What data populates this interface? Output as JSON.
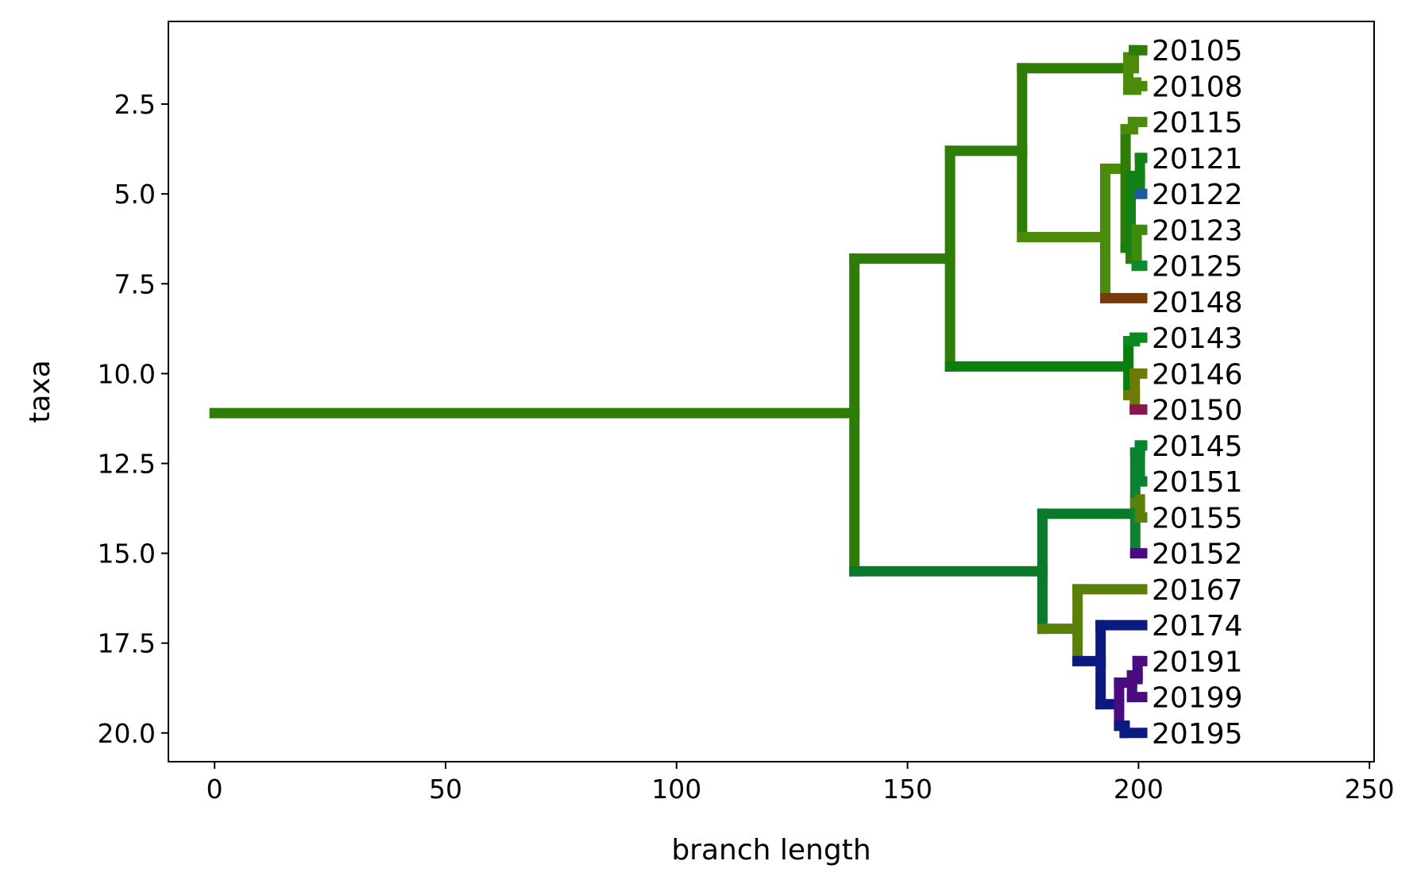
{
  "chart_data": {
    "type": "dendrogram",
    "title": "",
    "xlabel": "branch length",
    "ylabel": "taxa",
    "xlim": [
      -10,
      251
    ],
    "ylim": [
      20.8,
      0.2
    ],
    "y_inverted": true,
    "grid": false,
    "xticks": [
      0,
      50,
      100,
      150,
      200,
      250
    ],
    "yticks": [
      2.5,
      5.0,
      7.5,
      10.0,
      12.5,
      15.0,
      17.5,
      20.0
    ],
    "xtick_labels": [
      "0",
      "50",
      "100",
      "150",
      "200",
      "250"
    ],
    "ytick_labels": [
      "2.5",
      "5.0",
      "7.5",
      "10.0",
      "12.5",
      "15.0",
      "17.5",
      "20.0"
    ],
    "leaves": [
      {
        "label": "20105",
        "y": 1,
        "x": 200.8
      },
      {
        "label": "20108",
        "y": 2,
        "x": 200.8
      },
      {
        "label": "20115",
        "y": 3,
        "x": 200.8
      },
      {
        "label": "20121",
        "y": 4,
        "x": 200.8
      },
      {
        "label": "20122",
        "y": 5,
        "x": 200.8
      },
      {
        "label": "20123",
        "y": 6,
        "x": 200.8
      },
      {
        "label": "20125",
        "y": 7,
        "x": 200.8
      },
      {
        "label": "20148",
        "y": 8,
        "x": 200.8
      },
      {
        "label": "20143",
        "y": 9,
        "x": 200.8
      },
      {
        "label": "20146",
        "y": 10,
        "x": 200.8
      },
      {
        "label": "20150",
        "y": 11,
        "x": 200.8
      },
      {
        "label": "20145",
        "y": 12,
        "x": 200.8
      },
      {
        "label": "20151",
        "y": 13,
        "x": 200.8
      },
      {
        "label": "20155",
        "y": 14,
        "x": 200.8
      },
      {
        "label": "20152",
        "y": 15,
        "x": 200.8
      },
      {
        "label": "20167",
        "y": 16,
        "x": 200.8
      },
      {
        "label": "20174",
        "y": 17,
        "x": 200.8
      },
      {
        "label": "20191",
        "y": 18,
        "x": 200.8
      },
      {
        "label": "20199",
        "y": 19,
        "x": 200.8
      },
      {
        "label": "20195",
        "y": 20,
        "x": 200.8
      }
    ],
    "segments": [
      {
        "x1": 0,
        "y1": 11.1,
        "x2": 138.5,
        "y2": 11.1,
        "color": "#2e7d06"
      },
      {
        "x1": 138.5,
        "y1": 6.8,
        "x2": 138.5,
        "y2": 15.5,
        "color": "#2e7d06"
      },
      {
        "x1": 138.5,
        "y1": 6.8,
        "x2": 159.2,
        "y2": 6.8,
        "color": "#2e7d06"
      },
      {
        "x1": 159.2,
        "y1": 3.8,
        "x2": 159.2,
        "y2": 9.8,
        "color": "#2e7d06"
      },
      {
        "x1": 159.2,
        "y1": 3.8,
        "x2": 174.8,
        "y2": 3.8,
        "color": "#2e7d06"
      },
      {
        "x1": 174.8,
        "y1": 1.5,
        "x2": 174.8,
        "y2": 6.2,
        "color": "#2e7d06"
      },
      {
        "x1": 174.8,
        "y1": 1.5,
        "x2": 197.8,
        "y2": 1.5,
        "color": "#2e7d06"
      },
      {
        "x1": 197.8,
        "y1": 1.2,
        "x2": 197.8,
        "y2": 2.1,
        "color": "#4c8a0a"
      },
      {
        "x1": 197.8,
        "y1": 1.2,
        "x2": 199.0,
        "y2": 1.2,
        "color": "#4c8a0a"
      },
      {
        "x1": 199.0,
        "y1": 1.0,
        "x2": 199.0,
        "y2": 1.5,
        "color": "#4c8a0a"
      },
      {
        "x1": 199.0,
        "y1": 1.0,
        "x2": 200.8,
        "y2": 1.0,
        "color": "#2e7d06"
      },
      {
        "x1": 197.8,
        "y1": 2.1,
        "x2": 199.5,
        "y2": 2.1,
        "color": "#4c8a0a"
      },
      {
        "x1": 199.5,
        "y1": 1.9,
        "x2": 199.5,
        "y2": 2.1,
        "color": "#4c8a0a"
      },
      {
        "x1": 199.5,
        "y1": 2.0,
        "x2": 200.8,
        "y2": 2.0,
        "color": "#4c8a0a"
      },
      {
        "x1": 174.8,
        "y1": 6.2,
        "x2": 192.8,
        "y2": 6.2,
        "color": "#4c8a0a"
      },
      {
        "x1": 192.8,
        "y1": 4.3,
        "x2": 192.8,
        "y2": 7.9,
        "color": "#4c8a0a"
      },
      {
        "x1": 192.8,
        "y1": 4.3,
        "x2": 197.2,
        "y2": 4.3,
        "color": "#4c8a0a"
      },
      {
        "x1": 197.2,
        "y1": 3.2,
        "x2": 197.2,
        "y2": 6.5,
        "color": "#2e7d06"
      },
      {
        "x1": 197.2,
        "y1": 3.2,
        "x2": 198.8,
        "y2": 3.2,
        "color": "#4c8a0a"
      },
      {
        "x1": 198.8,
        "y1": 3.0,
        "x2": 198.8,
        "y2": 3.2,
        "color": "#4c8a0a"
      },
      {
        "x1": 198.8,
        "y1": 3.0,
        "x2": 200.8,
        "y2": 3.0,
        "color": "#4c8a0a"
      },
      {
        "x1": 197.2,
        "y1": 6.5,
        "x2": 198.3,
        "y2": 6.5,
        "color": "#1f7d0e"
      },
      {
        "x1": 198.3,
        "y1": 4.5,
        "x2": 198.3,
        "y2": 6.8,
        "color": "#128214"
      },
      {
        "x1": 198.3,
        "y1": 4.5,
        "x2": 200.3,
        "y2": 4.5,
        "color": "#128214"
      },
      {
        "x1": 200.3,
        "y1": 4.0,
        "x2": 200.3,
        "y2": 5.0,
        "color": "#128214"
      },
      {
        "x1": 200.3,
        "y1": 4.0,
        "x2": 200.8,
        "y2": 4.0,
        "color": "#128214"
      },
      {
        "x1": 200.3,
        "y1": 5.0,
        "x2": 200.8,
        "y2": 5.0,
        "color": "#1e5aa0"
      },
      {
        "x1": 198.3,
        "y1": 6.8,
        "x2": 199.6,
        "y2": 6.8,
        "color": "#2e7d06"
      },
      {
        "x1": 199.6,
        "y1": 6.0,
        "x2": 199.6,
        "y2": 7.0,
        "color": "#3e8a0a"
      },
      {
        "x1": 199.6,
        "y1": 6.0,
        "x2": 200.8,
        "y2": 6.0,
        "color": "#3e8a0a"
      },
      {
        "x1": 199.6,
        "y1": 7.0,
        "x2": 200.8,
        "y2": 7.0,
        "color": "#0d8a2e"
      },
      {
        "x1": 192.8,
        "y1": 7.9,
        "x2": 200.8,
        "y2": 7.9,
        "color": "#7a3a05"
      },
      {
        "x1": 159.2,
        "y1": 9.8,
        "x2": 197.8,
        "y2": 9.8,
        "color": "#0b7e10"
      },
      {
        "x1": 197.8,
        "y1": 9.1,
        "x2": 197.8,
        "y2": 10.6,
        "color": "#0b7e10"
      },
      {
        "x1": 197.8,
        "y1": 9.1,
        "x2": 199.2,
        "y2": 9.1,
        "color": "#0b8a1e"
      },
      {
        "x1": 199.2,
        "y1": 9.0,
        "x2": 199.2,
        "y2": 9.1,
        "color": "#0b8a1e"
      },
      {
        "x1": 199.2,
        "y1": 9.0,
        "x2": 200.8,
        "y2": 9.0,
        "color": "#0b8a1e"
      },
      {
        "x1": 197.8,
        "y1": 10.6,
        "x2": 199.2,
        "y2": 10.6,
        "color": "#6e7a08"
      },
      {
        "x1": 199.2,
        "y1": 10.0,
        "x2": 199.2,
        "y2": 11.0,
        "color": "#6e7a08"
      },
      {
        "x1": 199.2,
        "y1": 10.0,
        "x2": 200.8,
        "y2": 10.0,
        "color": "#6e7a08"
      },
      {
        "x1": 199.2,
        "y1": 11.0,
        "x2": 200.8,
        "y2": 11.0,
        "color": "#8a1650"
      },
      {
        "x1": 138.5,
        "y1": 15.5,
        "x2": 179.2,
        "y2": 15.5,
        "color": "#0a7a2a"
      },
      {
        "x1": 179.2,
        "y1": 13.9,
        "x2": 179.2,
        "y2": 17.1,
        "color": "#0a7a2a"
      },
      {
        "x1": 179.2,
        "y1": 13.9,
        "x2": 199.3,
        "y2": 13.9,
        "color": "#0a7a2a"
      },
      {
        "x1": 199.3,
        "y1": 12.2,
        "x2": 199.3,
        "y2": 15.0,
        "color": "#0a8230"
      },
      {
        "x1": 199.3,
        "y1": 12.2,
        "x2": 200.3,
        "y2": 12.2,
        "color": "#0a8230"
      },
      {
        "x1": 200.3,
        "y1": 12.0,
        "x2": 200.3,
        "y2": 13.0,
        "color": "#0a8230"
      },
      {
        "x1": 200.3,
        "y1": 12.0,
        "x2": 200.8,
        "y2": 12.0,
        "color": "#0a8230"
      },
      {
        "x1": 200.3,
        "y1": 13.0,
        "x2": 200.8,
        "y2": 13.0,
        "color": "#0a8230"
      },
      {
        "x1": 199.3,
        "y1": 13.6,
        "x2": 200.3,
        "y2": 13.6,
        "color": "#5a800a"
      },
      {
        "x1": 200.3,
        "y1": 13.5,
        "x2": 200.3,
        "y2": 14.0,
        "color": "#5a800a"
      },
      {
        "x1": 200.3,
        "y1": 14.0,
        "x2": 200.8,
        "y2": 14.0,
        "color": "#5a800a"
      },
      {
        "x1": 199.3,
        "y1": 15.0,
        "x2": 200.8,
        "y2": 15.0,
        "color": "#4a0a80"
      },
      {
        "x1": 179.2,
        "y1": 17.1,
        "x2": 186.8,
        "y2": 17.1,
        "color": "#5a800a"
      },
      {
        "x1": 186.8,
        "y1": 16.0,
        "x2": 186.8,
        "y2": 18.0,
        "color": "#5a800a"
      },
      {
        "x1": 186.8,
        "y1": 16.0,
        "x2": 200.8,
        "y2": 16.0,
        "color": "#5a800a"
      },
      {
        "x1": 186.8,
        "y1": 18.0,
        "x2": 191.8,
        "y2": 18.0,
        "color": "#0a1a80"
      },
      {
        "x1": 191.8,
        "y1": 17.0,
        "x2": 191.8,
        "y2": 19.2,
        "color": "#0a1a80"
      },
      {
        "x1": 191.8,
        "y1": 17.0,
        "x2": 200.8,
        "y2": 17.0,
        "color": "#0a1a80"
      },
      {
        "x1": 191.8,
        "y1": 19.2,
        "x2": 195.8,
        "y2": 19.2,
        "color": "#0a1a80"
      },
      {
        "x1": 195.8,
        "y1": 18.6,
        "x2": 195.8,
        "y2": 19.8,
        "color": "#4a0a80"
      },
      {
        "x1": 195.8,
        "y1": 18.6,
        "x2": 198.6,
        "y2": 18.6,
        "color": "#4a0a80"
      },
      {
        "x1": 198.6,
        "y1": 18.4,
        "x2": 198.6,
        "y2": 19.0,
        "color": "#4a0a80"
      },
      {
        "x1": 198.6,
        "y1": 18.4,
        "x2": 199.8,
        "y2": 18.4,
        "color": "#4a0a80"
      },
      {
        "x1": 199.8,
        "y1": 18.0,
        "x2": 199.8,
        "y2": 18.5,
        "color": "#4a0a80"
      },
      {
        "x1": 199.8,
        "y1": 18.0,
        "x2": 200.8,
        "y2": 18.0,
        "color": "#4a0a80"
      },
      {
        "x1": 198.6,
        "y1": 19.0,
        "x2": 200.8,
        "y2": 19.0,
        "color": "#4a0a80"
      },
      {
        "x1": 195.8,
        "y1": 19.8,
        "x2": 197.0,
        "y2": 19.8,
        "color": "#0a1a80"
      },
      {
        "x1": 197.0,
        "y1": 19.8,
        "x2": 197.0,
        "y2": 20.0,
        "color": "#0a1a80"
      },
      {
        "x1": 197.0,
        "y1": 20.0,
        "x2": 200.8,
        "y2": 20.0,
        "color": "#0a1a80"
      }
    ]
  }
}
